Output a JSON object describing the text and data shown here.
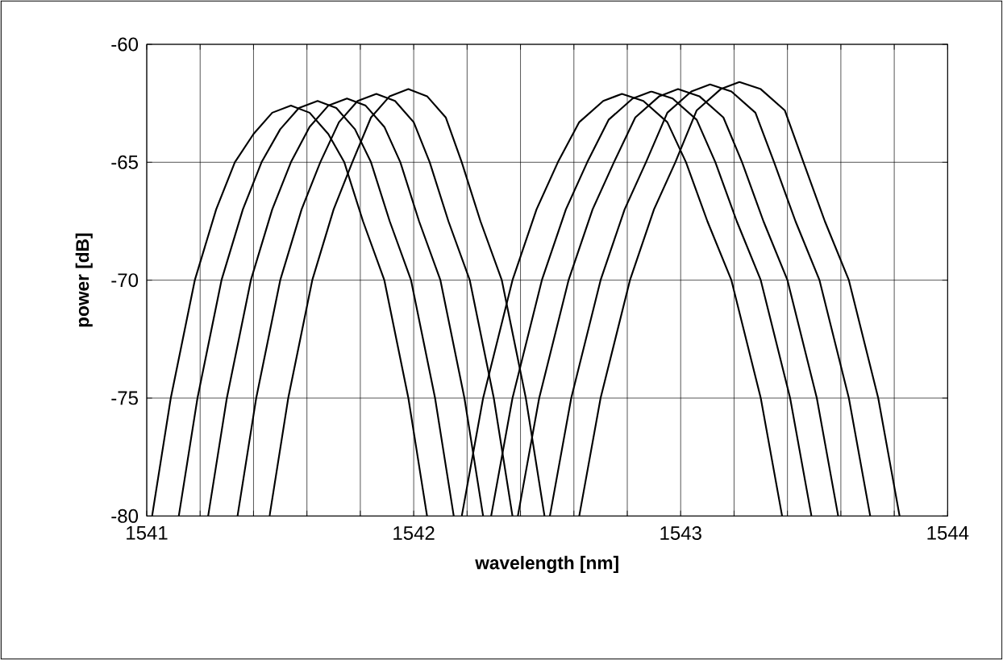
{
  "chart_data": {
    "type": "line",
    "xlabel": "wavelength [nm]",
    "ylabel": "power [dB]",
    "xlim": [
      1541,
      1544
    ],
    "ylim": [
      -80,
      -60
    ],
    "xticks": [
      1541,
      {
        "value": 1541.2,
        "label": null
      },
      {
        "value": 1541.4,
        "label": null
      },
      {
        "value": 1541.6,
        "label": null
      },
      {
        "value": 1541.8,
        "label": null
      },
      1542,
      {
        "value": 1542.2,
        "label": null
      },
      {
        "value": 1542.4,
        "label": null
      },
      {
        "value": 1542.6,
        "label": null
      },
      {
        "value": 1542.8,
        "label": null
      },
      1543,
      {
        "value": 1543.2,
        "label": null
      },
      {
        "value": 1543.4,
        "label": null
      },
      {
        "value": 1543.6,
        "label": null
      },
      {
        "value": 1543.8,
        "label": null
      },
      1544
    ],
    "yticks": [
      -80,
      -75,
      -70,
      -65,
      -60
    ],
    "grid": true,
    "line_style": "solid",
    "marker": "none",
    "series": [
      {
        "color": "#000000",
        "x": [
          1541.02,
          1541.09,
          1541.18,
          1541.26,
          1541.33,
          1541.4,
          1541.47,
          1541.54,
          1541.61,
          1541.68,
          1541.74,
          1541.81,
          1541.89,
          1541.98,
          1542.05
        ],
        "values": [
          -80,
          -75,
          -70,
          -67,
          -65,
          -63.8,
          -62.9,
          -62.6,
          -62.9,
          -63.8,
          -65,
          -67.5,
          -70,
          -75,
          -80
        ]
      },
      {
        "color": "#000000",
        "x": [
          1541.12,
          1541.19,
          1541.28,
          1541.36,
          1541.43,
          1541.5,
          1541.57,
          1541.64,
          1541.71,
          1541.78,
          1541.84,
          1541.91,
          1541.99,
          1542.08,
          1542.15
        ],
        "values": [
          -80,
          -75,
          -70,
          -67,
          -65,
          -63.6,
          -62.7,
          -62.4,
          -62.7,
          -63.6,
          -65,
          -67.5,
          -70,
          -75,
          -80
        ]
      },
      {
        "color": "#000000",
        "x": [
          1541.23,
          1541.3,
          1541.39,
          1541.47,
          1541.54,
          1541.61,
          1541.68,
          1541.75,
          1541.82,
          1541.89,
          1541.95,
          1542.02,
          1542.1,
          1542.19,
          1542.26
        ],
        "values": [
          -80,
          -75,
          -70,
          -67,
          -65,
          -63.5,
          -62.6,
          -62.3,
          -62.6,
          -63.5,
          -65,
          -67.5,
          -70,
          -75,
          -80
        ]
      },
      {
        "color": "#000000",
        "x": [
          1541.34,
          1541.41,
          1541.5,
          1541.58,
          1541.65,
          1541.72,
          1541.79,
          1541.86,
          1541.93,
          1542.0,
          1542.06,
          1542.13,
          1542.21,
          1542.3,
          1542.37
        ],
        "values": [
          -80,
          -75,
          -70,
          -67,
          -65,
          -63.3,
          -62.4,
          -62.1,
          -62.4,
          -63.3,
          -65,
          -67.5,
          -70,
          -75,
          -80
        ]
      },
      {
        "color": "#000000",
        "x": [
          1541.46,
          1541.53,
          1541.62,
          1541.7,
          1541.77,
          1541.84,
          1541.91,
          1541.98,
          1542.05,
          1542.12,
          1542.18,
          1542.25,
          1542.33,
          1542.42,
          1542.49
        ],
        "values": [
          -80,
          -75,
          -70,
          -67,
          -65,
          -63.1,
          -62.2,
          -61.9,
          -62.2,
          -63.1,
          -65,
          -67.5,
          -70,
          -75,
          -80
        ]
      },
      {
        "color": "#000000",
        "x": [
          1542.18,
          1542.26,
          1542.37,
          1542.46,
          1542.54,
          1542.62,
          1542.71,
          1542.78,
          1542.86,
          1542.95,
          1543.02,
          1543.1,
          1543.19,
          1543.3,
          1543.38
        ],
        "values": [
          -80,
          -75,
          -70,
          -67,
          -65,
          -63.3,
          -62.4,
          -62.1,
          -62.4,
          -63.3,
          -65,
          -67.5,
          -70,
          -75,
          -80
        ]
      },
      {
        "color": "#000000",
        "x": [
          1542.29,
          1542.37,
          1542.48,
          1542.57,
          1542.65,
          1542.73,
          1542.82,
          1542.89,
          1542.97,
          1543.06,
          1543.13,
          1543.21,
          1543.3,
          1543.41,
          1543.49
        ],
        "values": [
          -80,
          -75,
          -70,
          -67,
          -65,
          -63.2,
          -62.3,
          -62.0,
          -62.3,
          -63.2,
          -65,
          -67.5,
          -70,
          -75,
          -80
        ]
      },
      {
        "color": "#000000",
        "x": [
          1542.39,
          1542.47,
          1542.58,
          1542.67,
          1542.75,
          1542.83,
          1542.92,
          1542.99,
          1543.07,
          1543.16,
          1543.23,
          1543.31,
          1543.4,
          1543.51,
          1543.59
        ],
        "values": [
          -80,
          -75,
          -70,
          -67,
          -65,
          -63.1,
          -62.2,
          -61.9,
          -62.2,
          -63.1,
          -65,
          -67.5,
          -70,
          -75,
          -80
        ]
      },
      {
        "color": "#000000",
        "x": [
          1542.51,
          1542.59,
          1542.7,
          1542.79,
          1542.87,
          1542.95,
          1543.04,
          1543.11,
          1543.19,
          1543.28,
          1543.35,
          1543.43,
          1543.52,
          1543.63,
          1543.71
        ],
        "values": [
          -80,
          -75,
          -70,
          -67,
          -65,
          -62.9,
          -62.0,
          -61.7,
          -62.0,
          -62.9,
          -65,
          -67.5,
          -70,
          -75,
          -80
        ]
      },
      {
        "color": "#000000",
        "x": [
          1542.62,
          1542.7,
          1542.81,
          1542.9,
          1542.98,
          1543.06,
          1543.15,
          1543.22,
          1543.3,
          1543.39,
          1543.46,
          1543.54,
          1543.63,
          1543.74,
          1543.82
        ],
        "values": [
          -80,
          -75,
          -70,
          -67,
          -65,
          -62.8,
          -61.9,
          -61.6,
          -61.9,
          -62.8,
          -65,
          -67.5,
          -70,
          -75,
          -80
        ]
      }
    ]
  }
}
